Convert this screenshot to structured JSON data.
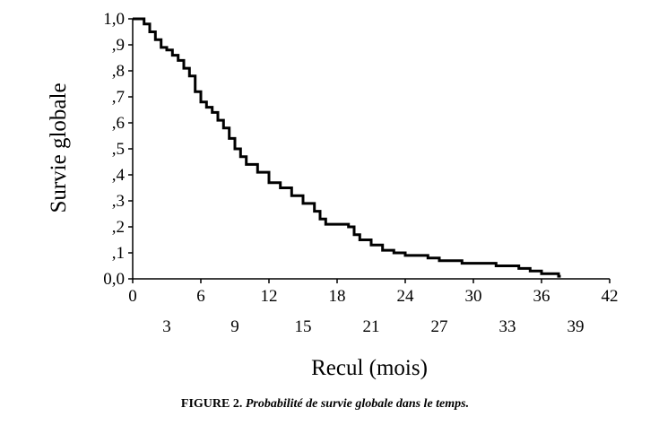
{
  "chart_data": {
    "type": "line",
    "step": true,
    "ylabel": "Survie globale",
    "xlabel": "Recul (mois)",
    "xlim": [
      0,
      42
    ],
    "ylim": [
      0,
      1
    ],
    "y_ticks": [
      "0,0",
      ",1",
      ",2",
      ",3",
      ",4",
      ",5",
      ",6",
      ",7",
      ",8",
      ",9",
      "1,0"
    ],
    "x_ticks_upper": [
      "0",
      "6",
      "12",
      "18",
      "24",
      "30",
      "36",
      "42"
    ],
    "x_ticks_lower": [
      "3",
      "9",
      "15",
      "21",
      "27",
      "33",
      "39"
    ],
    "grid": false,
    "series": [
      {
        "x": [
          0.5,
          1.0,
          1.5,
          2.0,
          2.5,
          3.0,
          3.5,
          4.0,
          4.5,
          5.0,
          5.5,
          6.0,
          6.5,
          7.0,
          7.5,
          8.0,
          8.5,
          9.0,
          9.5,
          10.0,
          11.0,
          12.0,
          13.0,
          14.0,
          15.0,
          16.0,
          16.5,
          17.0,
          18.0,
          19.0,
          19.5,
          20.0,
          21.0,
          22.0,
          23.0,
          24.0,
          25.0,
          26.0,
          27.0,
          28.0,
          29.0,
          31.0,
          32.0,
          34.0,
          35.0,
          36.0,
          37.5
        ],
        "y": [
          1.0,
          0.98,
          0.95,
          0.92,
          0.89,
          0.88,
          0.86,
          0.84,
          0.81,
          0.78,
          0.72,
          0.68,
          0.66,
          0.64,
          0.61,
          0.58,
          0.54,
          0.5,
          0.47,
          0.44,
          0.41,
          0.37,
          0.35,
          0.32,
          0.29,
          0.26,
          0.23,
          0.21,
          0.21,
          0.2,
          0.17,
          0.15,
          0.13,
          0.11,
          0.1,
          0.09,
          0.09,
          0.08,
          0.07,
          0.07,
          0.06,
          0.06,
          0.05,
          0.04,
          0.03,
          0.02,
          0.01
        ]
      }
    ]
  },
  "caption": {
    "label": "FIGURE 2.",
    "text": "Probabilité de survie globale dans le temps."
  },
  "colors": {
    "line": "#000000",
    "axis": "#000000",
    "background": "#ffffff"
  }
}
